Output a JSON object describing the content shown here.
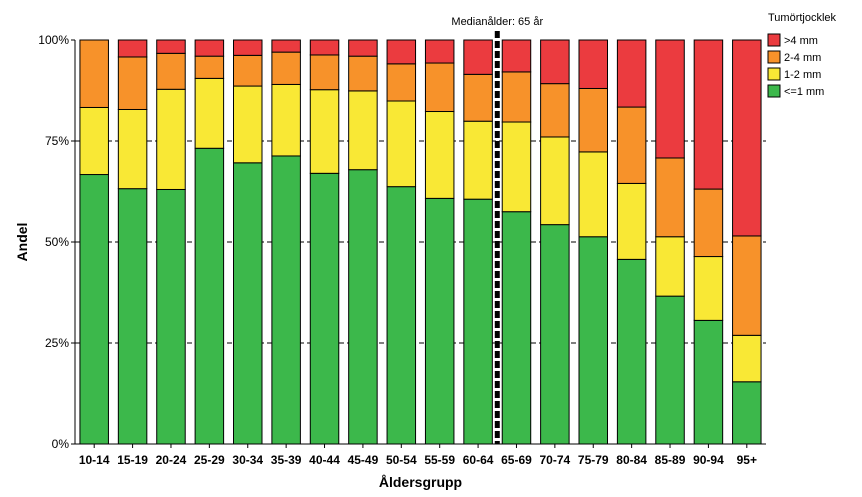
{
  "chart_data": {
    "type": "bar",
    "stacked": true,
    "xlabel": "Åldersgrupp",
    "ylabel": "Andel",
    "ylim": [
      0,
      100
    ],
    "yticks": [
      0,
      25,
      50,
      75,
      100
    ],
    "ytick_labels": [
      "0%",
      "25%",
      "50%",
      "75%",
      "100%"
    ],
    "grid": "dashed at 25%, 50%, 75%",
    "legend_title": "Tumörtjocklek",
    "legend_position": "top-right",
    "reference_line": {
      "label": "Medianålder: 65 år",
      "position": "between 60-64 and 65-69",
      "style": "dashed"
    },
    "categories": [
      "10-14",
      "15-19",
      "20-24",
      "25-29",
      "30-34",
      "35-39",
      "40-44",
      "45-49",
      "50-54",
      "55-59",
      "60-64",
      "65-69",
      "70-74",
      "75-79",
      "80-84",
      "85-89",
      "90-94",
      "95+"
    ],
    "series": [
      {
        "name": "<=1 mm",
        "color": "#3cb84b",
        "values": [
          66.7,
          63.2,
          63.0,
          73.2,
          69.6,
          71.3,
          67.0,
          67.9,
          63.7,
          60.8,
          60.6,
          57.5,
          54.3,
          51.3,
          45.7,
          36.6,
          30.6,
          15.4
        ]
      },
      {
        "name": "1-2 mm",
        "color": "#f9e835",
        "values": [
          16.6,
          19.6,
          24.8,
          17.3,
          19.0,
          17.7,
          20.7,
          19.5,
          21.2,
          21.5,
          19.3,
          22.2,
          21.7,
          21.0,
          18.8,
          14.7,
          15.8,
          11.5
        ]
      },
      {
        "name": "2-4 mm",
        "color": "#f7922a",
        "values": [
          16.7,
          13.0,
          8.9,
          5.5,
          7.6,
          8.0,
          8.6,
          8.6,
          9.2,
          12.0,
          11.6,
          12.4,
          13.2,
          15.7,
          18.9,
          19.5,
          16.7,
          24.6
        ]
      },
      {
        "name": ">4 mm",
        "color": "#eb3b3f",
        "values": [
          0.0,
          4.2,
          3.3,
          4.0,
          3.8,
          3.0,
          3.7,
          4.0,
          5.9,
          5.7,
          8.5,
          7.9,
          10.8,
          12.0,
          16.6,
          29.2,
          36.9,
          48.5
        ]
      }
    ],
    "legend_order": [
      ">4 mm",
      "2-4 mm",
      "1-2 mm",
      "<=1 mm"
    ]
  }
}
